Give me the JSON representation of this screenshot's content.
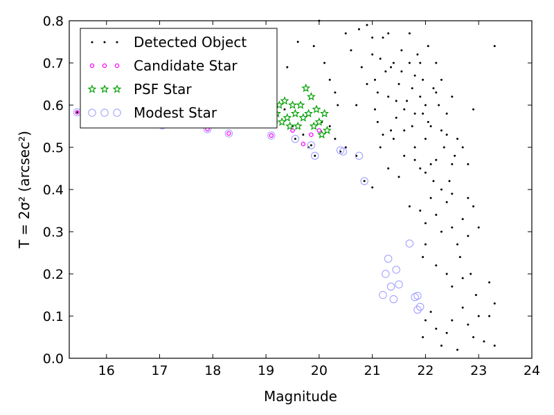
{
  "chart_data": {
    "type": "scatter",
    "title": "",
    "xlabel": "Magnitude",
    "ylabel": "T = 2σ² (arcsec²)",
    "xlim": [
      15.3,
      24
    ],
    "ylim": [
      0,
      0.8
    ],
    "xticks": [
      16,
      17,
      18,
      19,
      20,
      21,
      22,
      23,
      24
    ],
    "yticks": [
      0.0,
      0.1,
      0.2,
      0.3,
      0.4,
      0.5,
      0.6,
      0.7,
      0.8
    ],
    "xtick_labels": [
      "16",
      "17",
      "18",
      "19",
      "20",
      "21",
      "22",
      "23",
      "24"
    ],
    "ytick_labels": [
      "0.0",
      "0.1",
      "0.2",
      "0.3",
      "0.4",
      "0.5",
      "0.6",
      "0.7",
      "0.8"
    ],
    "grid": false,
    "legend_position": "top-left",
    "series": [
      {
        "name": "Detected Object",
        "marker": "dot",
        "color": "#000000",
        "points": [
          [
            15.45,
            0.583
          ],
          [
            15.62,
            0.57
          ],
          [
            15.78,
            0.578
          ],
          [
            16.1,
            0.568
          ],
          [
            16.45,
            0.566
          ],
          [
            16.85,
            0.56
          ],
          [
            17.05,
            0.552
          ],
          [
            17.3,
            0.558
          ],
          [
            17.55,
            0.556
          ],
          [
            17.95,
            0.55
          ],
          [
            18.35,
            0.548
          ],
          [
            18.55,
            0.552
          ],
          [
            18.8,
            0.556
          ],
          [
            18.95,
            0.57
          ],
          [
            19.1,
            0.58
          ],
          [
            19.2,
            0.56
          ],
          [
            19.35,
            0.59
          ],
          [
            19.5,
            0.55
          ],
          [
            19.55,
            0.52
          ],
          [
            19.7,
            0.53
          ],
          [
            19.8,
            0.5
          ],
          [
            19.85,
            0.505
          ],
          [
            19.92,
            0.48
          ],
          [
            20.05,
            0.56
          ],
          [
            20.2,
            0.55
          ],
          [
            20.3,
            0.52
          ],
          [
            20.4,
            0.49
          ],
          [
            20.5,
            0.5
          ],
          [
            20.7,
            0.48
          ],
          [
            20.85,
            0.42
          ],
          [
            21.0,
            0.405
          ],
          [
            21.3,
            0.45
          ],
          [
            21.5,
            0.43
          ],
          [
            21.8,
            0.5
          ],
          [
            22.1,
            0.55
          ],
          [
            22.2,
            0.47
          ],
          [
            22.5,
            0.46
          ],
          [
            22.8,
            0.46
          ],
          [
            19.4,
            0.69
          ],
          [
            19.6,
            0.75
          ],
          [
            19.9,
            0.74
          ],
          [
            20.0,
            0.8
          ],
          [
            20.1,
            0.7
          ],
          [
            20.2,
            0.66
          ],
          [
            20.3,
            0.63
          ],
          [
            20.35,
            0.6
          ],
          [
            20.5,
            0.77
          ],
          [
            20.6,
            0.73
          ],
          [
            20.7,
            0.6
          ],
          [
            20.75,
            0.78
          ],
          [
            20.8,
            0.69
          ],
          [
            20.9,
            0.65
          ],
          [
            21.0,
            0.72
          ],
          [
            21.05,
            0.59
          ],
          [
            21.1,
            0.56
          ],
          [
            21.15,
            0.5
          ],
          [
            21.2,
            0.76
          ],
          [
            21.25,
            0.68
          ],
          [
            21.3,
            0.62
          ],
          [
            21.35,
            0.54
          ],
          [
            21.4,
            0.7
          ],
          [
            21.45,
            0.57
          ],
          [
            21.5,
            0.65
          ],
          [
            21.55,
            0.73
          ],
          [
            21.6,
            0.48
          ],
          [
            21.65,
            0.61
          ],
          [
            21.7,
            0.77
          ],
          [
            21.75,
            0.55
          ],
          [
            21.8,
            0.67
          ],
          [
            21.85,
            0.72
          ],
          [
            21.9,
            0.62
          ],
          [
            21.95,
            0.58
          ],
          [
            22.0,
            0.52
          ],
          [
            22.05,
            0.74
          ],
          [
            22.1,
            0.46
          ],
          [
            22.15,
            0.64
          ],
          [
            22.2,
            0.7
          ],
          [
            22.25,
            0.6
          ],
          [
            22.3,
            0.54
          ],
          [
            22.35,
            0.5
          ],
          [
            22.4,
            0.58
          ],
          [
            22.45,
            0.42
          ],
          [
            22.5,
            0.62
          ],
          [
            22.55,
            0.48
          ],
          [
            22.6,
            0.52
          ],
          [
            22.7,
            0.5
          ],
          [
            22.9,
            0.59
          ],
          [
            23.3,
            0.74
          ],
          [
            20.9,
            0.79
          ],
          [
            21.0,
            0.76
          ],
          [
            21.05,
            0.66
          ],
          [
            21.1,
            0.63
          ],
          [
            21.15,
            0.71
          ],
          [
            21.3,
            0.77
          ],
          [
            21.35,
            0.69
          ],
          [
            21.45,
            0.61
          ],
          [
            21.55,
            0.68
          ],
          [
            21.6,
            0.59
          ],
          [
            21.7,
            0.7
          ],
          [
            21.75,
            0.64
          ],
          [
            21.8,
            0.58
          ],
          [
            21.9,
            0.7
          ],
          [
            21.95,
            0.66
          ],
          [
            22.0,
            0.6
          ],
          [
            22.05,
            0.56
          ],
          [
            22.2,
            0.63
          ],
          [
            22.3,
            0.66
          ],
          [
            22.4,
            0.53
          ],
          [
            21.2,
            0.53
          ],
          [
            21.4,
            0.52
          ],
          [
            21.6,
            0.54
          ],
          [
            21.8,
            0.47
          ],
          [
            21.9,
            0.45
          ],
          [
            22.0,
            0.44
          ],
          [
            22.15,
            0.42
          ],
          [
            22.3,
            0.4
          ],
          [
            22.5,
            0.39
          ],
          [
            22.8,
            0.38
          ],
          [
            21.7,
            0.36
          ],
          [
            21.9,
            0.35
          ],
          [
            22.0,
            0.32
          ],
          [
            22.1,
            0.38
          ],
          [
            22.2,
            0.34
          ],
          [
            22.3,
            0.3
          ],
          [
            22.4,
            0.37
          ],
          [
            22.5,
            0.31
          ],
          [
            22.6,
            0.27
          ],
          [
            22.7,
            0.33
          ],
          [
            22.8,
            0.29
          ],
          [
            22.9,
            0.36
          ],
          [
            23.0,
            0.31
          ],
          [
            22.65,
            0.24
          ],
          [
            22.2,
            0.22
          ],
          [
            22.0,
            0.27
          ],
          [
            21.95,
            0.24
          ],
          [
            22.4,
            0.2
          ],
          [
            22.5,
            0.17
          ],
          [
            22.7,
            0.19
          ],
          [
            22.85,
            0.2
          ],
          [
            22.95,
            0.15
          ],
          [
            23.2,
            0.18
          ],
          [
            23.3,
            0.13
          ],
          [
            21.95,
            0.05
          ],
          [
            22.1,
            0.11
          ],
          [
            22.2,
            0.07
          ],
          [
            22.3,
            0.03
          ],
          [
            22.4,
            0.06
          ],
          [
            22.5,
            0.09
          ],
          [
            22.6,
            0.02
          ],
          [
            22.7,
            0.12
          ],
          [
            22.8,
            0.08
          ],
          [
            22.9,
            0.05
          ],
          [
            23.0,
            0.1
          ],
          [
            23.1,
            0.04
          ],
          [
            23.2,
            0.1
          ],
          [
            23.3,
            0.03
          ],
          [
            22.0,
            0.09
          ]
        ]
      },
      {
        "name": "Candidate Star",
        "marker": "circle-small",
        "color": "#ff00ff",
        "points": [
          [
            15.45,
            0.583
          ],
          [
            15.62,
            0.57
          ],
          [
            16.1,
            0.568
          ],
          [
            17.05,
            0.552
          ],
          [
            17.9,
            0.543
          ],
          [
            18.3,
            0.533
          ],
          [
            19.1,
            0.528
          ],
          [
            19.5,
            0.54
          ],
          [
            19.7,
            0.508
          ],
          [
            19.85,
            0.53
          ],
          [
            20.0,
            0.54
          ]
        ]
      },
      {
        "name": "PSF Star",
        "marker": "star",
        "color": "#00a000",
        "points": [
          [
            19.0,
            0.56
          ],
          [
            19.05,
            0.57
          ],
          [
            19.1,
            0.59
          ],
          [
            19.2,
            0.58
          ],
          [
            19.25,
            0.6
          ],
          [
            19.3,
            0.56
          ],
          [
            19.35,
            0.61
          ],
          [
            19.4,
            0.57
          ],
          [
            19.45,
            0.55
          ],
          [
            19.5,
            0.6
          ],
          [
            19.55,
            0.58
          ],
          [
            19.6,
            0.55
          ],
          [
            19.65,
            0.6
          ],
          [
            19.7,
            0.57
          ],
          [
            19.75,
            0.64
          ],
          [
            19.8,
            0.58
          ],
          [
            19.85,
            0.62
          ],
          [
            19.9,
            0.55
          ],
          [
            19.95,
            0.59
          ],
          [
            20.0,
            0.56
          ],
          [
            20.05,
            0.53
          ],
          [
            20.1,
            0.58
          ],
          [
            20.15,
            0.54
          ]
        ]
      },
      {
        "name": "Modest Star",
        "marker": "circle-open",
        "color": "#9999ff",
        "points": [
          [
            15.45,
            0.583
          ],
          [
            15.78,
            0.578
          ],
          [
            16.1,
            0.568
          ],
          [
            17.05,
            0.552
          ],
          [
            17.9,
            0.543
          ],
          [
            18.3,
            0.533
          ],
          [
            19.1,
            0.528
          ],
          [
            19.55,
            0.52
          ],
          [
            19.85,
            0.505
          ],
          [
            19.92,
            0.48
          ],
          [
            20.4,
            0.493
          ],
          [
            20.45,
            0.49
          ],
          [
            20.75,
            0.48
          ],
          [
            20.85,
            0.42
          ],
          [
            21.2,
            0.15
          ],
          [
            21.25,
            0.2
          ],
          [
            21.3,
            0.236
          ],
          [
            21.35,
            0.17
          ],
          [
            21.4,
            0.14
          ],
          [
            21.45,
            0.21
          ],
          [
            21.5,
            0.175
          ],
          [
            21.7,
            0.272
          ],
          [
            21.8,
            0.145
          ],
          [
            21.85,
            0.148
          ],
          [
            21.9,
            0.122
          ],
          [
            21.85,
            0.115
          ]
        ]
      }
    ]
  }
}
